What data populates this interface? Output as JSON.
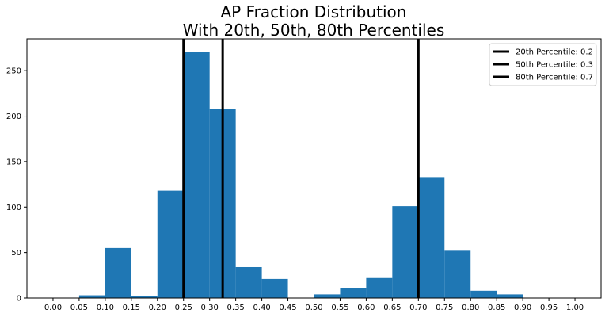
{
  "chart_data": {
    "type": "bar",
    "title_lines": [
      "AP Fraction Distribution",
      "With 20th, 50th, 80th Percentiles"
    ],
    "xlabel": "",
    "ylabel": "",
    "xlim": [
      -0.05,
      1.05
    ],
    "ylim": [
      0,
      285
    ],
    "grid": false,
    "bar_color": "#1f77b4",
    "bins": [
      {
        "x0": 0.05,
        "x1": 0.1,
        "count": 3
      },
      {
        "x0": 0.1,
        "x1": 0.15,
        "count": 55
      },
      {
        "x0": 0.15,
        "x1": 0.2,
        "count": 2
      },
      {
        "x0": 0.2,
        "x1": 0.25,
        "count": 118
      },
      {
        "x0": 0.25,
        "x1": 0.3,
        "count": 271
      },
      {
        "x0": 0.3,
        "x1": 0.35,
        "count": 208
      },
      {
        "x0": 0.35,
        "x1": 0.4,
        "count": 34
      },
      {
        "x0": 0.4,
        "x1": 0.45,
        "count": 21
      },
      {
        "x0": 0.45,
        "x1": 0.5,
        "count": 0
      },
      {
        "x0": 0.5,
        "x1": 0.55,
        "count": 4
      },
      {
        "x0": 0.55,
        "x1": 0.6,
        "count": 11
      },
      {
        "x0": 0.6,
        "x1": 0.65,
        "count": 22
      },
      {
        "x0": 0.65,
        "x1": 0.7,
        "count": 101
      },
      {
        "x0": 0.7,
        "x1": 0.75,
        "count": 133
      },
      {
        "x0": 0.75,
        "x1": 0.8,
        "count": 52
      },
      {
        "x0": 0.8,
        "x1": 0.85,
        "count": 8
      },
      {
        "x0": 0.85,
        "x1": 0.9,
        "count": 4
      }
    ],
    "percentile_lines": [
      {
        "label": "20th Percentile: 0.2",
        "x": 0.25,
        "color": "#000000"
      },
      {
        "label": "50th Percentile: 0.3",
        "x": 0.325,
        "color": "#000000"
      },
      {
        "label": "80th Percentile: 0.7",
        "x": 0.7,
        "color": "#000000"
      }
    ],
    "x_ticks": [
      "0.00",
      "0.05",
      "0.10",
      "0.15",
      "0.20",
      "0.25",
      "0.30",
      "0.35",
      "0.40",
      "0.45",
      "0.50",
      "0.55",
      "0.60",
      "0.65",
      "0.70",
      "0.75",
      "0.80",
      "0.85",
      "0.90",
      "0.95",
      "1.00"
    ],
    "y_ticks": [
      0,
      50,
      100,
      150,
      200,
      250
    ],
    "legend_position": "top-right"
  }
}
